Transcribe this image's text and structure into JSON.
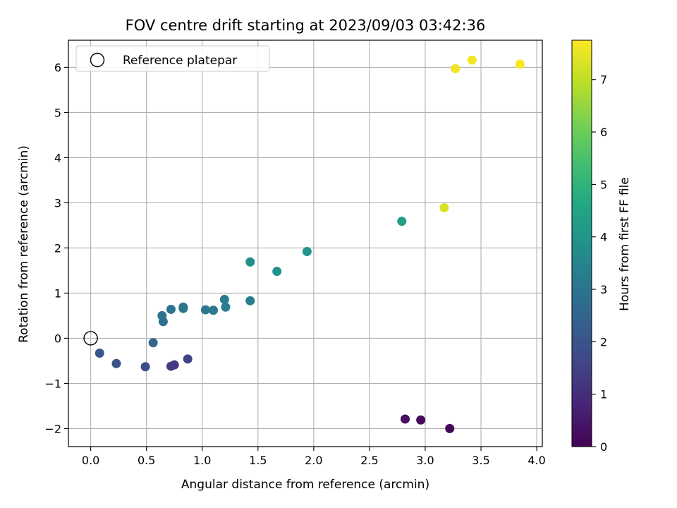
{
  "chart_data": {
    "type": "scatter",
    "title": "FOV centre drift starting at 2023/09/03 03:42:36",
    "xlabel": "Angular distance from reference (arcmin)",
    "ylabel": "Rotation from reference (arcmin)",
    "xlim": [
      -0.2,
      4.05
    ],
    "ylim": [
      -2.4,
      6.6
    ],
    "x_ticks": [
      0.0,
      0.5,
      1.0,
      1.5,
      2.0,
      2.5,
      3.0,
      3.5,
      4.0
    ],
    "x_tick_labels": [
      "0.0",
      "0.5",
      "1.0",
      "1.5",
      "2.0",
      "2.5",
      "3.0",
      "3.5",
      "4.0"
    ],
    "y_ticks": [
      -2,
      -1,
      0,
      1,
      2,
      3,
      4,
      5,
      6
    ],
    "y_tick_labels": [
      "−2",
      "−1",
      "0",
      "1",
      "2",
      "3",
      "4",
      "5",
      "6"
    ],
    "grid": true,
    "legend": {
      "placement": "top-left",
      "entries": [
        "Reference platepar"
      ]
    },
    "reference_point": {
      "x": 0.0,
      "y": 0.0
    },
    "colorbar": {
      "label": "Hours from first FF file",
      "range": [
        0,
        7.75
      ],
      "ticks": [
        0,
        1,
        2,
        3,
        4,
        5,
        6,
        7
      ],
      "tick_labels": [
        "0",
        "1",
        "2",
        "3",
        "4",
        "5",
        "6",
        "7"
      ],
      "colormap": "viridis"
    },
    "points": [
      {
        "x": 3.22,
        "y": -2.0,
        "hours": 0.1
      },
      {
        "x": 2.96,
        "y": -1.81,
        "hours": 0.2
      },
      {
        "x": 2.82,
        "y": -1.79,
        "hours": 0.3
      },
      {
        "x": 0.75,
        "y": -0.59,
        "hours": 1.2
      },
      {
        "x": 0.72,
        "y": -0.62,
        "hours": 1.3
      },
      {
        "x": 0.87,
        "y": -0.46,
        "hours": 1.5
      },
      {
        "x": 0.49,
        "y": -0.63,
        "hours": 1.8
      },
      {
        "x": 0.23,
        "y": -0.56,
        "hours": 2.0
      },
      {
        "x": 0.08,
        "y": -0.33,
        "hours": 2.1
      },
      {
        "x": 0.56,
        "y": -0.1,
        "hours": 2.5
      },
      {
        "x": 0.65,
        "y": 0.37,
        "hours": 2.8
      },
      {
        "x": 0.64,
        "y": 0.5,
        "hours": 2.9
      },
      {
        "x": 0.72,
        "y": 0.64,
        "hours": 2.95
      },
      {
        "x": 0.83,
        "y": 0.66,
        "hours": 3.0
      },
      {
        "x": 0.83,
        "y": 0.69,
        "hours": 3.05
      },
      {
        "x": 1.03,
        "y": 0.63,
        "hours": 3.1
      },
      {
        "x": 1.1,
        "y": 0.62,
        "hours": 3.15
      },
      {
        "x": 1.2,
        "y": 0.86,
        "hours": 3.2
      },
      {
        "x": 1.21,
        "y": 0.69,
        "hours": 3.25
      },
      {
        "x": 1.43,
        "y": 0.83,
        "hours": 3.3
      },
      {
        "x": 1.43,
        "y": 1.69,
        "hours": 3.8
      },
      {
        "x": 1.67,
        "y": 1.48,
        "hours": 3.9
      },
      {
        "x": 1.94,
        "y": 1.92,
        "hours": 4.0
      },
      {
        "x": 2.79,
        "y": 2.59,
        "hours": 4.3
      },
      {
        "x": 3.17,
        "y": 2.89,
        "hours": 7.3
      },
      {
        "x": 3.27,
        "y": 5.97,
        "hours": 7.6
      },
      {
        "x": 3.42,
        "y": 6.16,
        "hours": 7.65
      },
      {
        "x": 3.85,
        "y": 6.07,
        "hours": 7.7
      }
    ]
  }
}
